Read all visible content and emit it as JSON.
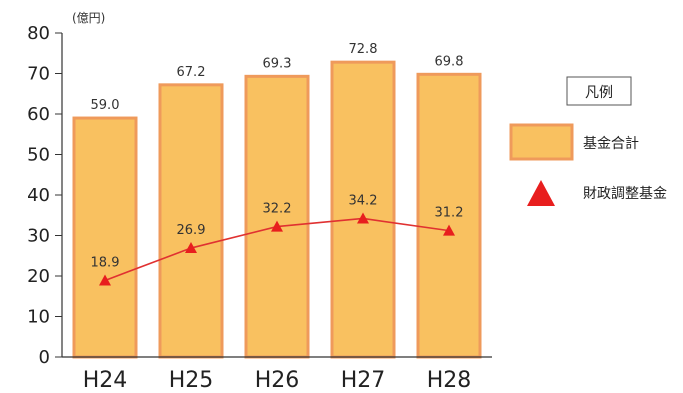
{
  "chart_data": {
    "type": "bar",
    "categories": [
      "H24",
      "H25",
      "H26",
      "H27",
      "H28"
    ],
    "unit": "(億円)",
    "ylim": [
      0,
      80
    ],
    "yticks": [
      0,
      10,
      20,
      30,
      40,
      50,
      60,
      70,
      80
    ],
    "series": [
      {
        "name": "基金合計",
        "type": "bar",
        "values": [
          59.0,
          67.2,
          69.3,
          72.8,
          69.8
        ],
        "labels": [
          "59.0",
          "67.2",
          "69.3",
          "72.8",
          "69.8"
        ]
      },
      {
        "name": "財政調整基金",
        "type": "line",
        "values": [
          18.9,
          26.9,
          32.2,
          34.2,
          31.2
        ],
        "labels": [
          "18.9",
          "26.9",
          "32.2",
          "34.2",
          "31.2"
        ]
      }
    ],
    "legend": {
      "title": "凡例",
      "position": "right"
    },
    "grid": false,
    "colors": {
      "bar_fill": "#F9C160",
      "bar_stroke": "#EF9A5B",
      "line": "#E03131",
      "marker": "#E81E1E"
    }
  }
}
